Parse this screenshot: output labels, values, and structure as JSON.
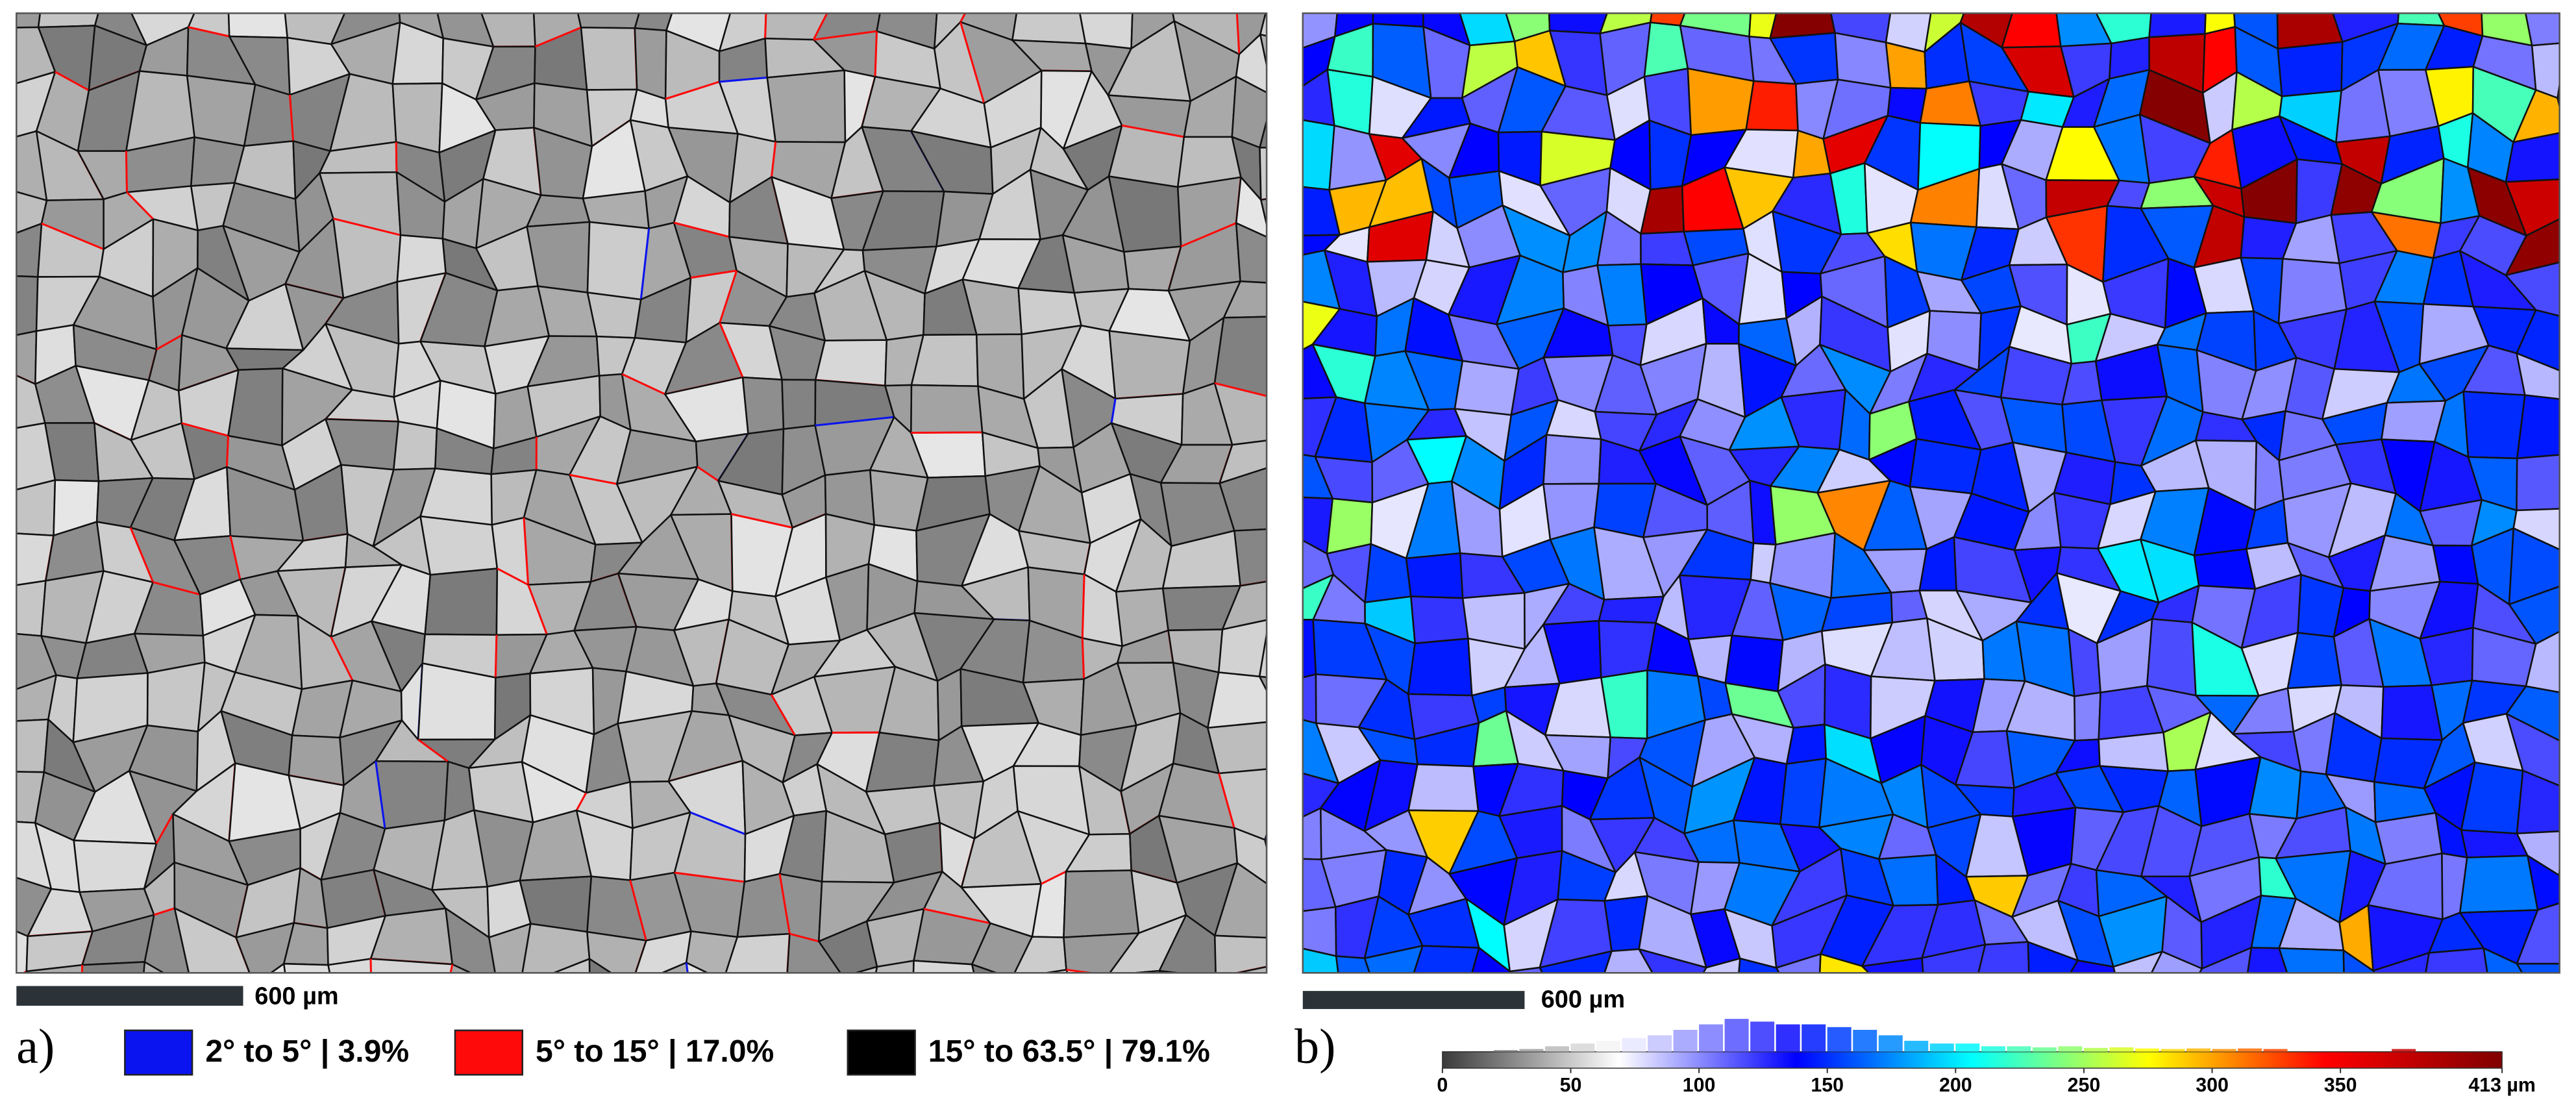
{
  "panels": [
    {
      "label": "a)",
      "scale_bar": "600 µm",
      "legend": [
        {
          "label": "2° to 5° | 3.9%",
          "color": "#0a14f0"
        },
        {
          "label": "5° to 15° | 17.0%",
          "color": "#ff0a0a"
        },
        {
          "label": "15° to 63.5° | 79.1%",
          "color": "#000000"
        }
      ]
    },
    {
      "label": "b)",
      "scale_bar": "600 µm",
      "colorbar": {
        "lim": [
          0,
          413
        ],
        "ticks": [
          0,
          50,
          100,
          150,
          200,
          250,
          300,
          350,
          {
            "value": 413,
            "label": "413 µm"
          }
        ],
        "colormap": [
          "#3a3a3a",
          "#ffffff",
          "#0000ff",
          "#00ffff",
          "#ffff00",
          "#ff0000",
          "#800000"
        ],
        "histogram": {
          "bins": [
            0,
            10,
            20,
            30,
            40,
            50,
            60,
            70,
            80,
            90,
            100,
            110,
            120,
            130,
            140,
            150,
            160,
            170,
            180,
            190,
            200,
            210,
            220,
            230,
            240,
            250,
            260,
            270,
            280,
            290,
            300,
            310,
            320,
            330,
            340,
            350,
            360,
            370,
            380,
            390,
            400,
            410
          ],
          "counts": [
            0,
            0,
            0.3,
            0.5,
            1,
            1.5,
            2,
            2.5,
            3,
            4,
            5,
            6,
            5.5,
            5,
            5,
            4.5,
            4,
            3,
            2,
            1.5,
            1.5,
            1,
            1,
            0.8,
            1,
            0.7,
            0.8,
            0.6,
            0.5,
            0.6,
            0.5,
            0.6,
            0.5,
            0,
            0,
            0,
            0,
            0.5,
            0,
            0,
            0
          ]
        }
      }
    }
  ]
}
